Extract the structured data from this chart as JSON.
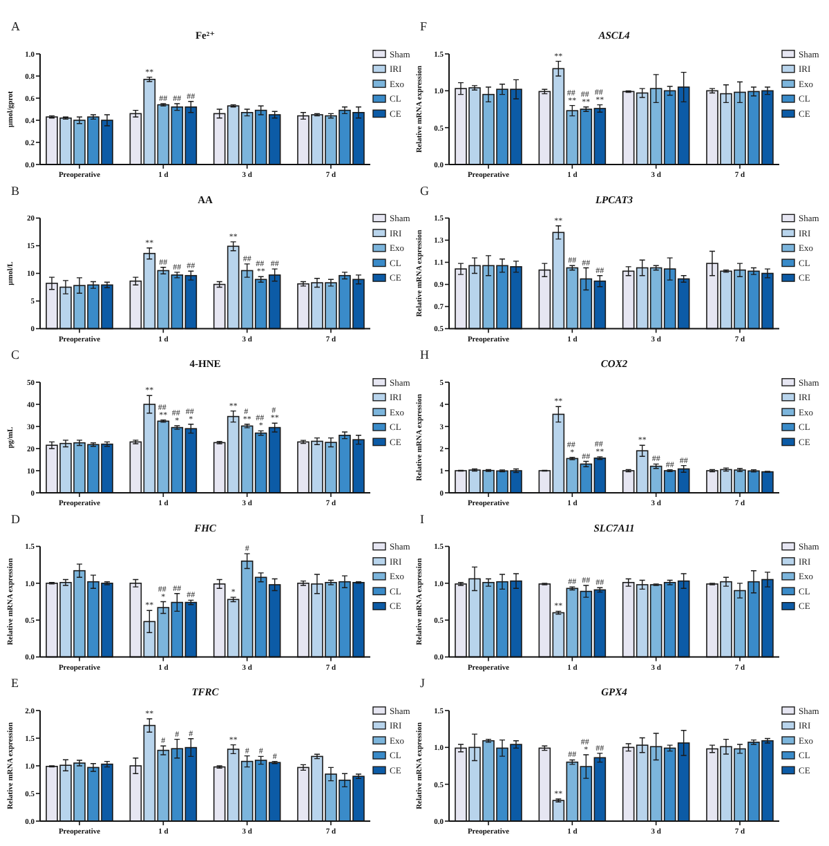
{
  "chart_data": [
    {
      "type": "bar",
      "title": "Fe²⁺",
      "ylabel": "μmol/gprot",
      "annotations": [
        "A"
      ],
      "categories": [
        "Preoperative",
        "1 d",
        "3 d",
        "7 d"
      ],
      "ylim": [
        0,
        1
      ],
      "yticks": [
        {
          "value": 0,
          "label": "0.0"
        },
        0.2,
        0.4,
        0.6,
        0.8,
        {
          "value": 1,
          "label": "1.0"
        }
      ],
      "legend": "right",
      "series": [
        {
          "name": "Sham",
          "color": "#e6e6f2",
          "values": [
            0.43,
            0.46,
            0.46,
            0.44
          ],
          "errors": [
            0.01,
            0.03,
            0.04,
            0.03
          ]
        },
        {
          "name": "IRI",
          "color": "#b8d4ec",
          "values": [
            0.42,
            0.77,
            0.53,
            0.45
          ],
          "errors": [
            0.01,
            0.02,
            0.01,
            0.01
          ],
          "value_labels": [
            null,
            "**",
            null,
            null
          ]
        },
        {
          "name": "Exo",
          "color": "#7cb5dc",
          "values": [
            0.4,
            0.54,
            0.47,
            0.44
          ],
          "errors": [
            0.03,
            0.01,
            0.03,
            0.02
          ],
          "value_labels": [
            null,
            "##",
            null,
            null
          ]
        },
        {
          "name": "CL",
          "color": "#3a8bc9",
          "values": [
            0.43,
            0.52,
            0.49,
            0.49
          ],
          "errors": [
            0.02,
            0.03,
            0.04,
            0.03
          ],
          "value_labels": [
            null,
            "##",
            null,
            null
          ]
        },
        {
          "name": "CE",
          "color": "#0c5ba6",
          "values": [
            0.4,
            0.52,
            0.45,
            0.47
          ],
          "errors": [
            0.05,
            0.05,
            0.03,
            0.05
          ],
          "value_labels": [
            null,
            "##",
            null,
            null
          ]
        }
      ]
    },
    {
      "type": "bar",
      "title": "AA",
      "ylabel": "μmol/L",
      "annotations": [
        "B"
      ],
      "categories": [
        "Preoperative",
        "1 d",
        "3 d",
        "7 d"
      ],
      "ylim": [
        0,
        20
      ],
      "yticks": [
        0,
        5,
        10,
        15,
        20
      ],
      "legend": "right",
      "series": [
        {
          "name": "Sham",
          "color": "#e6e6f2",
          "values": [
            8.2,
            8.6,
            8.0,
            8.1
          ],
          "errors": [
            1.1,
            0.7,
            0.5,
            0.4
          ]
        },
        {
          "name": "IRI",
          "color": "#b8d4ec",
          "values": [
            7.5,
            13.6,
            14.9,
            8.3
          ],
          "errors": [
            1.2,
            1.0,
            0.8,
            0.8
          ],
          "value_labels": [
            null,
            "**",
            "**",
            null
          ]
        },
        {
          "name": "Exo",
          "color": "#7cb5dc",
          "values": [
            7.8,
            10.5,
            10.5,
            8.3
          ],
          "errors": [
            1.4,
            0.6,
            1.2,
            0.6
          ],
          "value_labels": [
            null,
            "##",
            "##",
            null
          ]
        },
        {
          "name": "CL",
          "color": "#3a8bc9",
          "values": [
            7.9,
            9.7,
            8.9,
            9.6
          ],
          "errors": [
            0.6,
            0.5,
            0.5,
            0.6
          ],
          "value_labels": [
            null,
            "##",
            "## **",
            null
          ]
        },
        {
          "name": "CE",
          "color": "#0c5ba6",
          "values": [
            7.9,
            9.6,
            9.7,
            8.9
          ],
          "errors": [
            0.5,
            0.8,
            1.1,
            0.8
          ],
          "value_labels": [
            null,
            "##",
            "##",
            null
          ]
        }
      ]
    },
    {
      "type": "bar",
      "title": "4-HNE",
      "ylabel": "pg/mL",
      "annotations": [
        "C"
      ],
      "categories": [
        "Preoperative",
        "1 d",
        "3 d",
        "7 d"
      ],
      "ylim": [
        0,
        50
      ],
      "yticks": [
        0,
        10,
        20,
        30,
        40,
        50
      ],
      "legend": "right",
      "series": [
        {
          "name": "Sham",
          "color": "#e6e6f2",
          "values": [
            21.5,
            23.0,
            22.7,
            23.0
          ],
          "errors": [
            1.5,
            0.8,
            0.5,
            0.7
          ]
        },
        {
          "name": "IRI",
          "color": "#b8d4ec",
          "values": [
            22.3,
            40,
            34.5,
            23.3
          ],
          "errors": [
            1.5,
            4,
            2.5,
            1.5
          ],
          "value_labels": [
            null,
            "**",
            "**",
            null
          ]
        },
        {
          "name": "Exo",
          "color": "#7cb5dc",
          "values": [
            22.6,
            32.4,
            30.2,
            22.8
          ],
          "errors": [
            1.2,
            0.5,
            0.8,
            2
          ],
          "value_labels": [
            null,
            "## **",
            "# **",
            null
          ]
        },
        {
          "name": "CL",
          "color": "#3a8bc9",
          "values": [
            21.8,
            29.5,
            27,
            26
          ],
          "errors": [
            0.8,
            0.8,
            1,
            1.5
          ],
          "value_labels": [
            null,
            "## *",
            "## *",
            null
          ]
        },
        {
          "name": "CE",
          "color": "#0c5ba6",
          "values": [
            22.0,
            29,
            29.5,
            24
          ],
          "errors": [
            1,
            2,
            2,
            2
          ],
          "value_labels": [
            null,
            "## *",
            "# **",
            null
          ]
        }
      ]
    },
    {
      "type": "bar",
      "title": "FHC",
      "ylabel": "Relative mRNA expression",
      "annotations": [
        "D"
      ],
      "categories": [
        "Preoperative",
        "1 d",
        "3 d",
        "7 d"
      ],
      "ylim": [
        0,
        1.5
      ],
      "yticks": [
        {
          "value": 0,
          "label": "0.0"
        },
        0.5,
        {
          "value": 1,
          "label": "1.0"
        },
        1.5
      ],
      "legend": "right",
      "series": [
        {
          "name": "Sham",
          "color": "#e6e6f2",
          "values": [
            1.0,
            1.0,
            0.99,
            1.0
          ],
          "errors": [
            0.01,
            0.05,
            0.06,
            0.03
          ]
        },
        {
          "name": "IRI",
          "color": "#b8d4ec",
          "values": [
            1.01,
            0.48,
            0.78,
            0.99
          ],
          "errors": [
            0.04,
            0.15,
            0.03,
            0.13
          ],
          "value_labels": [
            null,
            "**",
            "*",
            null
          ]
        },
        {
          "name": "Exo",
          "color": "#7cb5dc",
          "values": [
            1.17,
            0.67,
            1.3,
            1.01
          ],
          "errors": [
            0.09,
            0.08,
            0.1,
            0.03
          ],
          "value_labels": [
            null,
            "## *",
            "#",
            null
          ]
        },
        {
          "name": "CL",
          "color": "#3a8bc9",
          "values": [
            1.02,
            0.74,
            1.08,
            1.02
          ],
          "errors": [
            0.09,
            0.12,
            0.06,
            0.08
          ],
          "value_labels": [
            null,
            "##",
            null,
            null
          ]
        },
        {
          "name": "CE",
          "color": "#0c5ba6",
          "values": [
            1.0,
            0.74,
            0.98,
            1.01
          ],
          "errors": [
            0.02,
            0.03,
            0.08,
            0.01
          ],
          "value_labels": [
            null,
            "##",
            null,
            null
          ]
        }
      ]
    },
    {
      "type": "bar",
      "title": "TFRC",
      "ylabel": "Relative mRNA expression",
      "annotations": [
        "E"
      ],
      "categories": [
        "Preoperative",
        "1 d",
        "3 d",
        "7 d"
      ],
      "ylim": [
        0,
        2
      ],
      "yticks": [
        {
          "value": 0,
          "label": "0.0"
        },
        0.5,
        {
          "value": 1,
          "label": "1.0"
        },
        1.5,
        {
          "value": 2,
          "label": "2.0"
        }
      ],
      "legend": "right",
      "series": [
        {
          "name": "Sham",
          "color": "#e6e6f2",
          "values": [
            0.99,
            1.0,
            0.98,
            0.97
          ],
          "errors": [
            0.01,
            0.14,
            0.02,
            0.05
          ]
        },
        {
          "name": "IRI",
          "color": "#b8d4ec",
          "values": [
            1.01,
            1.73,
            1.3,
            1.17
          ],
          "errors": [
            0.1,
            0.12,
            0.08,
            0.04
          ],
          "value_labels": [
            null,
            "**",
            "**",
            null
          ]
        },
        {
          "name": "Exo",
          "color": "#7cb5dc",
          "values": [
            1.05,
            1.28,
            1.08,
            0.85
          ],
          "errors": [
            0.05,
            0.08,
            0.1,
            0.12
          ],
          "value_labels": [
            null,
            "#",
            "#",
            null
          ]
        },
        {
          "name": "CL",
          "color": "#3a8bc9",
          "values": [
            0.97,
            1.31,
            1.1,
            0.74
          ],
          "errors": [
            0.07,
            0.17,
            0.07,
            0.12
          ],
          "value_labels": [
            null,
            "#",
            "#",
            null
          ]
        },
        {
          "name": "CE",
          "color": "#0c5ba6",
          "values": [
            1.03,
            1.33,
            1.06,
            0.81
          ],
          "errors": [
            0.05,
            0.16,
            0.02,
            0.04
          ],
          "value_labels": [
            null,
            "#",
            "#",
            null
          ]
        }
      ]
    },
    {
      "type": "bar",
      "title": "ASCL4",
      "ylabel": "Relative mRNA expression",
      "annotations": [
        "F"
      ],
      "categories": [
        "Preoperative",
        "1 d",
        "3 d",
        "7 d"
      ],
      "ylim": [
        0,
        1.5
      ],
      "yticks": [
        {
          "value": 0,
          "label": "0.0"
        },
        0.5,
        {
          "value": 1,
          "label": "1.0"
        },
        1.5
      ],
      "legend": "right",
      "series": [
        {
          "name": "Sham",
          "color": "#e6e6f2",
          "values": [
            1.03,
            0.99,
            0.99,
            1.0
          ],
          "errors": [
            0.08,
            0.03,
            0.01,
            0.03
          ]
        },
        {
          "name": "IRI",
          "color": "#b8d4ec",
          "values": [
            1.04,
            1.3,
            0.97,
            0.96
          ],
          "errors": [
            0.03,
            0.1,
            0.06,
            0.12
          ],
          "value_labels": [
            null,
            "**",
            null,
            null
          ]
        },
        {
          "name": "Exo",
          "color": "#7cb5dc",
          "values": [
            0.95,
            0.73,
            1.03,
            0.98
          ],
          "errors": [
            0.1,
            0.07,
            0.19,
            0.14
          ],
          "value_labels": [
            null,
            "## **",
            null,
            null
          ]
        },
        {
          "name": "CL",
          "color": "#3a8bc9",
          "values": [
            1.02,
            0.75,
            1.0,
            0.99
          ],
          "errors": [
            0.07,
            0.03,
            0.06,
            0.06
          ],
          "value_labels": [
            null,
            "## **",
            null,
            null
          ]
        },
        {
          "name": "CE",
          "color": "#0c5ba6",
          "values": [
            1.02,
            0.76,
            1.05,
            1.0
          ],
          "errors": [
            0.13,
            0.05,
            0.2,
            0.05
          ],
          "value_labels": [
            null,
            "## **",
            null,
            null
          ]
        }
      ]
    },
    {
      "type": "bar",
      "title": "LPCAT3",
      "ylabel": "Relative mRNA expression",
      "annotations": [
        "G"
      ],
      "categories": [
        "Preoperative",
        "1 d",
        "3 d",
        "7 d"
      ],
      "ylim": [
        0.5,
        1.5
      ],
      "yticks": [
        0.5,
        0.7,
        0.9,
        1.1,
        1.3,
        1.5
      ],
      "legend": "right",
      "series": [
        {
          "name": "Sham",
          "color": "#e6e6f2",
          "values": [
            1.04,
            1.03,
            1.02,
            1.09
          ],
          "errors": [
            0.05,
            0.06,
            0.04,
            0.11
          ]
        },
        {
          "name": "IRI",
          "color": "#b8d4ec",
          "values": [
            1.07,
            1.37,
            1.05,
            1.02
          ],
          "errors": [
            0.07,
            0.06,
            0.07,
            0.01
          ],
          "value_labels": [
            null,
            "**",
            null,
            null
          ]
        },
        {
          "name": "Exo",
          "color": "#7cb5dc",
          "values": [
            1.07,
            1.05,
            1.05,
            1.03
          ],
          "errors": [
            0.09,
            0.02,
            0.02,
            0.06
          ],
          "value_labels": [
            null,
            "##",
            null,
            null
          ]
        },
        {
          "name": "CL",
          "color": "#3a8bc9",
          "values": [
            1.07,
            0.95,
            1.04,
            1.02
          ],
          "errors": [
            0.06,
            0.1,
            0.1,
            0.03
          ],
          "value_labels": [
            null,
            "##",
            null,
            null
          ]
        },
        {
          "name": "CE",
          "color": "#0c5ba6",
          "values": [
            1.06,
            0.93,
            0.95,
            1.0
          ],
          "errors": [
            0.05,
            0.05,
            0.03,
            0.04
          ],
          "value_labels": [
            null,
            "##",
            null,
            null
          ]
        }
      ]
    },
    {
      "type": "bar",
      "title": "COX2",
      "ylabel": "Relative mRNA expression",
      "annotations": [
        "H"
      ],
      "categories": [
        "Preoperative",
        "1 d",
        "3 d",
        "7 d"
      ],
      "ylim": [
        0,
        5
      ],
      "yticks": [
        0,
        1,
        2,
        3,
        4,
        5
      ],
      "legend": "right",
      "series": [
        {
          "name": "Sham",
          "color": "#e6e6f2",
          "values": [
            1.0,
            1.0,
            1.0,
            1.0
          ],
          "errors": [
            0.02,
            0.02,
            0.05,
            0.05
          ]
        },
        {
          "name": "IRI",
          "color": "#b8d4ec",
          "values": [
            1.03,
            3.55,
            1.9,
            1.05
          ],
          "errors": [
            0.05,
            0.35,
            0.25,
            0.07
          ],
          "value_labels": [
            null,
            "**",
            "**",
            null
          ]
        },
        {
          "name": "Exo",
          "color": "#7cb5dc",
          "values": [
            1.01,
            1.55,
            1.2,
            1.03
          ],
          "errors": [
            0.04,
            0.05,
            0.1,
            0.07
          ],
          "value_labels": [
            null,
            "## *",
            "##",
            null
          ]
        },
        {
          "name": "CL",
          "color": "#3a8bc9",
          "values": [
            0.99,
            1.3,
            1.0,
            0.99
          ],
          "errors": [
            0.04,
            0.12,
            0.04,
            0.05
          ],
          "value_labels": [
            null,
            "##",
            "##",
            null
          ]
        },
        {
          "name": "CE",
          "color": "#0c5ba6",
          "values": [
            1.0,
            1.57,
            1.08,
            0.95
          ],
          "errors": [
            0.08,
            0.06,
            0.15,
            0.02
          ],
          "value_labels": [
            null,
            "## **",
            "##",
            null
          ]
        }
      ]
    },
    {
      "type": "bar",
      "title": "SLC7A11",
      "ylabel": "Relative mRNA expression",
      "annotations": [
        "I"
      ],
      "categories": [
        "Preoperative",
        "1 d",
        "3 d",
        "7 d"
      ],
      "ylim": [
        0,
        1.5
      ],
      "yticks": [
        {
          "value": 0,
          "label": "0.0"
        },
        0.5,
        {
          "value": 1,
          "label": "1.0"
        },
        1.5
      ],
      "legend": "right",
      "series": [
        {
          "name": "Sham",
          "color": "#e6e6f2",
          "values": [
            0.99,
            0.99,
            1.01,
            0.99
          ],
          "errors": [
            0.02,
            0.01,
            0.05,
            0.01
          ]
        },
        {
          "name": "IRI",
          "color": "#b8d4ec",
          "values": [
            1.06,
            0.6,
            0.98,
            1.02
          ],
          "errors": [
            0.16,
            0.02,
            0.06,
            0.06
          ],
          "value_labels": [
            null,
            "**",
            null,
            null
          ]
        },
        {
          "name": "Exo",
          "color": "#7cb5dc",
          "values": [
            1.01,
            0.93,
            0.98,
            0.9
          ],
          "errors": [
            0.05,
            0.02,
            0.01,
            0.1
          ],
          "value_labels": [
            null,
            "##",
            null,
            null
          ]
        },
        {
          "name": "CL",
          "color": "#3a8bc9",
          "values": [
            1.02,
            0.89,
            1.01,
            1.02
          ],
          "errors": [
            0.1,
            0.08,
            0.03,
            0.15
          ],
          "value_labels": [
            null,
            "##",
            null,
            null
          ]
        },
        {
          "name": "CE",
          "color": "#0c5ba6",
          "values": [
            1.03,
            0.91,
            1.03,
            1.05
          ],
          "errors": [
            0.1,
            0.03,
            0.1,
            0.1
          ],
          "value_labels": [
            null,
            "##",
            null,
            null
          ]
        }
      ]
    },
    {
      "type": "bar",
      "title": "GPX4",
      "ylabel": "Relative mRNA expression",
      "annotations": [
        "J"
      ],
      "categories": [
        "Preoperative",
        "1 d",
        "3 d",
        "7 d"
      ],
      "ylim": [
        0,
        1.5
      ],
      "yticks": [
        {
          "value": 0,
          "label": "0.0"
        },
        0.5,
        {
          "value": 1,
          "label": "1.0"
        },
        1.5
      ],
      "legend": "right",
      "series": [
        {
          "name": "Sham",
          "color": "#e6e6f2",
          "values": [
            0.99,
            0.99,
            1.0,
            0.98
          ],
          "errors": [
            0.05,
            0.03,
            0.05,
            0.05
          ]
        },
        {
          "name": "IRI",
          "color": "#b8d4ec",
          "values": [
            1.0,
            0.28,
            1.03,
            1.01
          ],
          "errors": [
            0.18,
            0.02,
            0.1,
            0.1
          ],
          "value_labels": [
            null,
            "**",
            null,
            null
          ]
        },
        {
          "name": "Exo",
          "color": "#7cb5dc",
          "values": [
            1.09,
            0.8,
            1.01,
            0.98
          ],
          "errors": [
            0.02,
            0.03,
            0.18,
            0.06
          ],
          "value_labels": [
            null,
            "##",
            null,
            null
          ]
        },
        {
          "name": "CL",
          "color": "#3a8bc9",
          "values": [
            0.99,
            0.74,
            0.99,
            1.07
          ],
          "errors": [
            0.11,
            0.16,
            0.04,
            0.03
          ],
          "value_labels": [
            null,
            "## *",
            null,
            null
          ]
        },
        {
          "name": "CE",
          "color": "#0c5ba6",
          "values": [
            1.04,
            0.86,
            1.06,
            1.09
          ],
          "errors": [
            0.05,
            0.06,
            0.17,
            0.03
          ],
          "value_labels": [
            null,
            "##",
            null,
            null
          ]
        }
      ]
    }
  ]
}
